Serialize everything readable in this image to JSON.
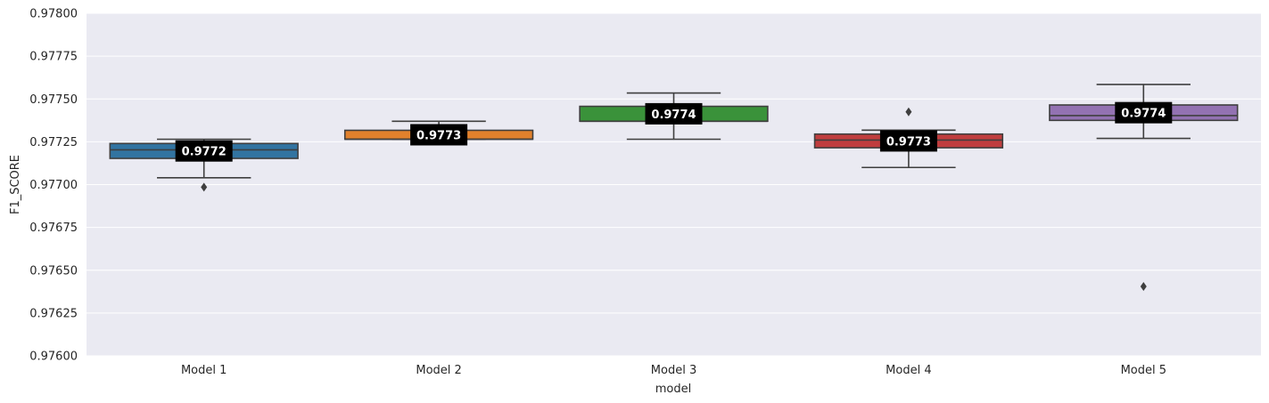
{
  "chart_data": {
    "type": "boxplot",
    "title": "",
    "xlabel": "model",
    "ylabel": "F1_SCORE",
    "ylim": [
      0.976,
      0.978
    ],
    "yticks": [
      "0.97600",
      "0.97625",
      "0.97650",
      "0.97675",
      "0.97700",
      "0.97725",
      "0.97750",
      "0.97775",
      "0.97800"
    ],
    "grid": true,
    "categories": [
      "Model 1",
      "Model 2",
      "Model 3",
      "Model 4",
      "Model 5"
    ],
    "series": [
      {
        "category": "Model 1",
        "color": "#3274a1",
        "whisker_low": 0.97704,
        "q1": 0.977153,
        "median": 0.977203,
        "q3": 0.97724,
        "whisker_high": 0.977265,
        "outliers": [
          0.976985
        ],
        "mean_label": "0.9772"
      },
      {
        "category": "Model 2",
        "color": "#e1812c",
        "whisker_low": 0.977265,
        "q1": 0.977265,
        "median": 0.977265,
        "q3": 0.977317,
        "whisker_high": 0.97737,
        "outliers": [],
        "mean_label": "0.9773"
      },
      {
        "category": "Model 3",
        "color": "#3a923a",
        "whisker_low": 0.977265,
        "q1": 0.97737,
        "median": 0.97737,
        "q3": 0.977457,
        "whisker_high": 0.977535,
        "outliers": [],
        "mean_label": "0.9774"
      },
      {
        "category": "Model 4",
        "color": "#c03d3e",
        "whisker_low": 0.9771,
        "q1": 0.977215,
        "median": 0.97726,
        "q3": 0.977295,
        "whisker_high": 0.977318,
        "outliers": [
          0.977425
        ],
        "mean_label": "0.9773"
      },
      {
        "category": "Model 5",
        "color": "#9372b2",
        "whisker_low": 0.97727,
        "q1": 0.977375,
        "median": 0.977403,
        "q3": 0.977465,
        "whisker_high": 0.977585,
        "outliers": [
          0.976405
        ],
        "mean_label": "0.9774"
      }
    ]
  }
}
